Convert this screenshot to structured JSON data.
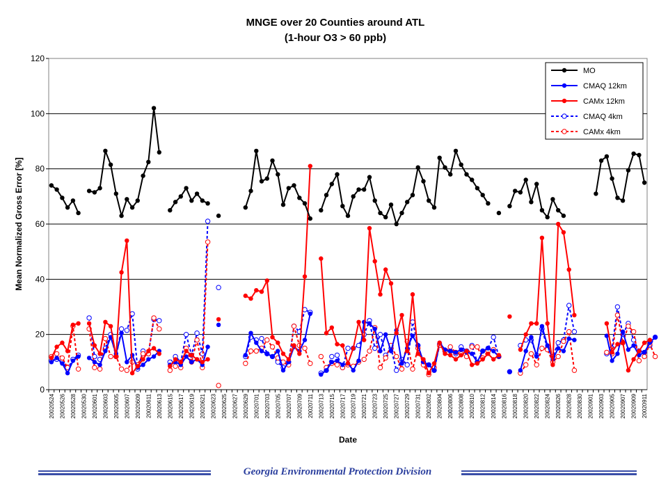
{
  "chart_data": {
    "type": "line",
    "title": "MNGE over 20 Counties around ATL",
    "subtitle": "(1-hour O3 > 60 ppb)",
    "xlabel": "Date",
    "ylabel": "Mean Normalized Gross Error [%]",
    "ylim": [
      0,
      120
    ],
    "yticks": [
      "0",
      "20",
      "40",
      "60",
      "80",
      "100",
      "120"
    ],
    "grid": "horizontal",
    "legend_position": "top-right",
    "x_tick_labels": [
      "20020524",
      "20020526",
      "20020528",
      "20020530",
      "20020601",
      "20020603",
      "20020605",
      "20020607",
      "20020609",
      "20020611",
      "20020613",
      "20020615",
      "20020617",
      "20020619",
      "20020621",
      "20020623",
      "20020625",
      "20020627",
      "20020629",
      "20020701",
      "20020703",
      "20020705",
      "20020707",
      "20020709",
      "20020711",
      "20020713",
      "20020715",
      "20020717",
      "20020719",
      "20020721",
      "20020723",
      "20020725",
      "20020727",
      "20020729",
      "20020731",
      "20020802",
      "20020804",
      "20020806",
      "20020808",
      "20020810",
      "20020812",
      "20020814",
      "20020816",
      "20020818",
      "20020820",
      "20020822",
      "20020824",
      "20020826",
      "20020828",
      "20020830",
      "20020901",
      "20020903",
      "20020905",
      "20020907",
      "20020909",
      "20020911"
    ],
    "series": [
      {
        "name": "MO",
        "color": "#000000",
        "style": "solid",
        "marker": "filled",
        "values": [
          74,
          72.5,
          69.5,
          66,
          68.5,
          64,
          null,
          72,
          71.5,
          73,
          86.5,
          81.5,
          71,
          63,
          69,
          66,
          68.5,
          77.5,
          82.5,
          102,
          86,
          null,
          65,
          68,
          70,
          73,
          68.5,
          71,
          68.5,
          67.5,
          null,
          63,
          null,
          null,
          null,
          null,
          66,
          72,
          86.5,
          75.5,
          76.5,
          83,
          78,
          67,
          73,
          74,
          69.5,
          67.5,
          62,
          null,
          65,
          70.5,
          74.5,
          78,
          66.5,
          63,
          70,
          72.5,
          72.5,
          77,
          68.5,
          64,
          62.5,
          67,
          60,
          64,
          68,
          70.5,
          80.5,
          75.5,
          68.5,
          66,
          84,
          80.5,
          78,
          86.5,
          81.5,
          78,
          76,
          73,
          70.5,
          67.5,
          null,
          64,
          null,
          66.5,
          72,
          71.5,
          76,
          68,
          74.5,
          65,
          62.5,
          69,
          65,
          63,
          null,
          null,
          null,
          null,
          null,
          71,
          83,
          84.5,
          76.5,
          69.5,
          68.5,
          79.5,
          85.5,
          85,
          75
        ]
      },
      {
        "name": "CMAQ 12km",
        "color": "#0000ff",
        "style": "solid",
        "marker": "filled",
        "values": [
          10,
          11.5,
          9.5,
          6,
          10.5,
          12,
          null,
          11.5,
          10,
          9,
          14,
          19,
          13,
          20.5,
          10,
          12.5,
          8,
          9,
          11,
          12,
          14,
          null,
          9,
          10,
          9,
          12,
          10,
          11,
          9,
          15.5,
          null,
          23.5,
          null,
          null,
          null,
          null,
          12.5,
          20.5,
          17,
          14,
          13,
          12,
          14,
          7,
          10,
          15.5,
          14,
          18,
          27.5,
          null,
          5.5,
          7,
          10,
          10.5,
          9,
          9.5,
          7,
          10.5,
          24.5,
          24,
          22,
          14,
          20,
          14,
          21.5,
          9.5,
          15,
          19.5,
          16,
          10,
          9,
          7,
          17,
          14.5,
          14,
          13.5,
          14.5,
          13.5,
          13,
          10,
          14,
          15,
          14,
          12,
          null,
          6.5,
          null,
          7,
          14,
          19,
          12,
          23,
          16,
          11,
          15,
          14,
          18.5,
          18,
          null,
          null,
          null,
          null,
          null,
          19.5,
          10.5,
          13,
          21,
          14.5,
          16,
          12.5,
          13.5,
          17,
          19
        ]
      },
      {
        "name": "CAMx 12km",
        "color": "#ff0000",
        "style": "solid",
        "marker": "filled",
        "values": [
          11.5,
          15.5,
          17,
          14,
          23.5,
          24,
          null,
          24,
          16,
          13,
          24.5,
          23,
          12,
          42.5,
          54,
          6,
          8.5,
          11,
          14,
          15,
          13,
          null,
          8.5,
          11,
          10,
          14,
          12.5,
          11,
          10,
          11,
          null,
          25.5,
          null,
          null,
          null,
          null,
          34,
          33,
          36,
          35.5,
          39.5,
          19,
          17,
          13,
          11,
          16,
          13,
          41,
          81,
          null,
          47.5,
          20.5,
          22.5,
          16.5,
          16,
          9.5,
          15,
          24.5,
          18,
          58.5,
          46.5,
          34.5,
          43.5,
          38.5,
          20.5,
          27,
          14,
          34.5,
          13,
          11,
          6,
          9.5,
          17,
          13,
          12.5,
          11,
          12.5,
          14,
          9,
          9.5,
          11,
          13,
          11,
          12.5,
          null,
          26.5,
          null,
          14.5,
          20,
          24,
          24,
          55,
          24,
          9,
          60,
          57,
          43.5,
          27,
          null,
          null,
          null,
          null,
          null,
          24,
          13.5,
          16.5,
          17,
          7,
          11,
          14,
          17,
          18
        ]
      },
      {
        "name": "CMAQ 4km",
        "color": "#0000ff",
        "style": "dashed",
        "marker": "open",
        "values": [
          10.5,
          11,
          10,
          7.5,
          11,
          12.5,
          null,
          26,
          12,
          11,
          15,
          20,
          12,
          22,
          21.5,
          27.5,
          7.5,
          14,
          13,
          25.5,
          25,
          null,
          10,
          12,
          10,
          20,
          12.5,
          20.5,
          13,
          61,
          null,
          37,
          null,
          null,
          null,
          null,
          12,
          19,
          18,
          18.5,
          13,
          12,
          10,
          8,
          10,
          23,
          21,
          29,
          28,
          null,
          6,
          7,
          12,
          12.5,
          8,
          15,
          15,
          16,
          20,
          25,
          15,
          20,
          12.5,
          15,
          7,
          11,
          9,
          24.5,
          16,
          10,
          9,
          7,
          16.5,
          14,
          14,
          13,
          15.5,
          14,
          16,
          10,
          14,
          15,
          19,
          12,
          null,
          6.5,
          null,
          16,
          18,
          18,
          12.5,
          22,
          15,
          12,
          17,
          18,
          30.5,
          21,
          null,
          null,
          null,
          null,
          null,
          13,
          15,
          30,
          20,
          24,
          18,
          14,
          13.5,
          16,
          19
        ]
      },
      {
        "name": "CAMx 4km",
        "color": "#ff0000",
        "style": "dashed",
        "marker": "open",
        "values": [
          12,
          13,
          11.5,
          8,
          23,
          7.5,
          null,
          22,
          8,
          7.5,
          18.5,
          12,
          12,
          7.5,
          7,
          10,
          9,
          13,
          13,
          26,
          22,
          null,
          7,
          8.5,
          8,
          15,
          10,
          18,
          8,
          53.5,
          null,
          1.5,
          null,
          null,
          null,
          null,
          9.5,
          14,
          14,
          15,
          18,
          15.5,
          11.5,
          10,
          9,
          23,
          16,
          15,
          9.5,
          null,
          12,
          8,
          9.5,
          9,
          8,
          9,
          8.5,
          10,
          11,
          14,
          22.5,
          8,
          11.5,
          16,
          12,
          7.5,
          17.5,
          7.5,
          15,
          9,
          5.5,
          8,
          16,
          14,
          15.5,
          13.5,
          13,
          12,
          15.5,
          15.5,
          11.5,
          14,
          14.5,
          12,
          null,
          null,
          null,
          6,
          9,
          13,
          9,
          15,
          14.5,
          10,
          12,
          17.5,
          21,
          7,
          null,
          null,
          null,
          null,
          null,
          13.5,
          13,
          27,
          17,
          23,
          21,
          10.5,
          12,
          16.5,
          12
        ]
      }
    ]
  },
  "footer": {
    "text": "Georgia Environmental Protection Division"
  }
}
